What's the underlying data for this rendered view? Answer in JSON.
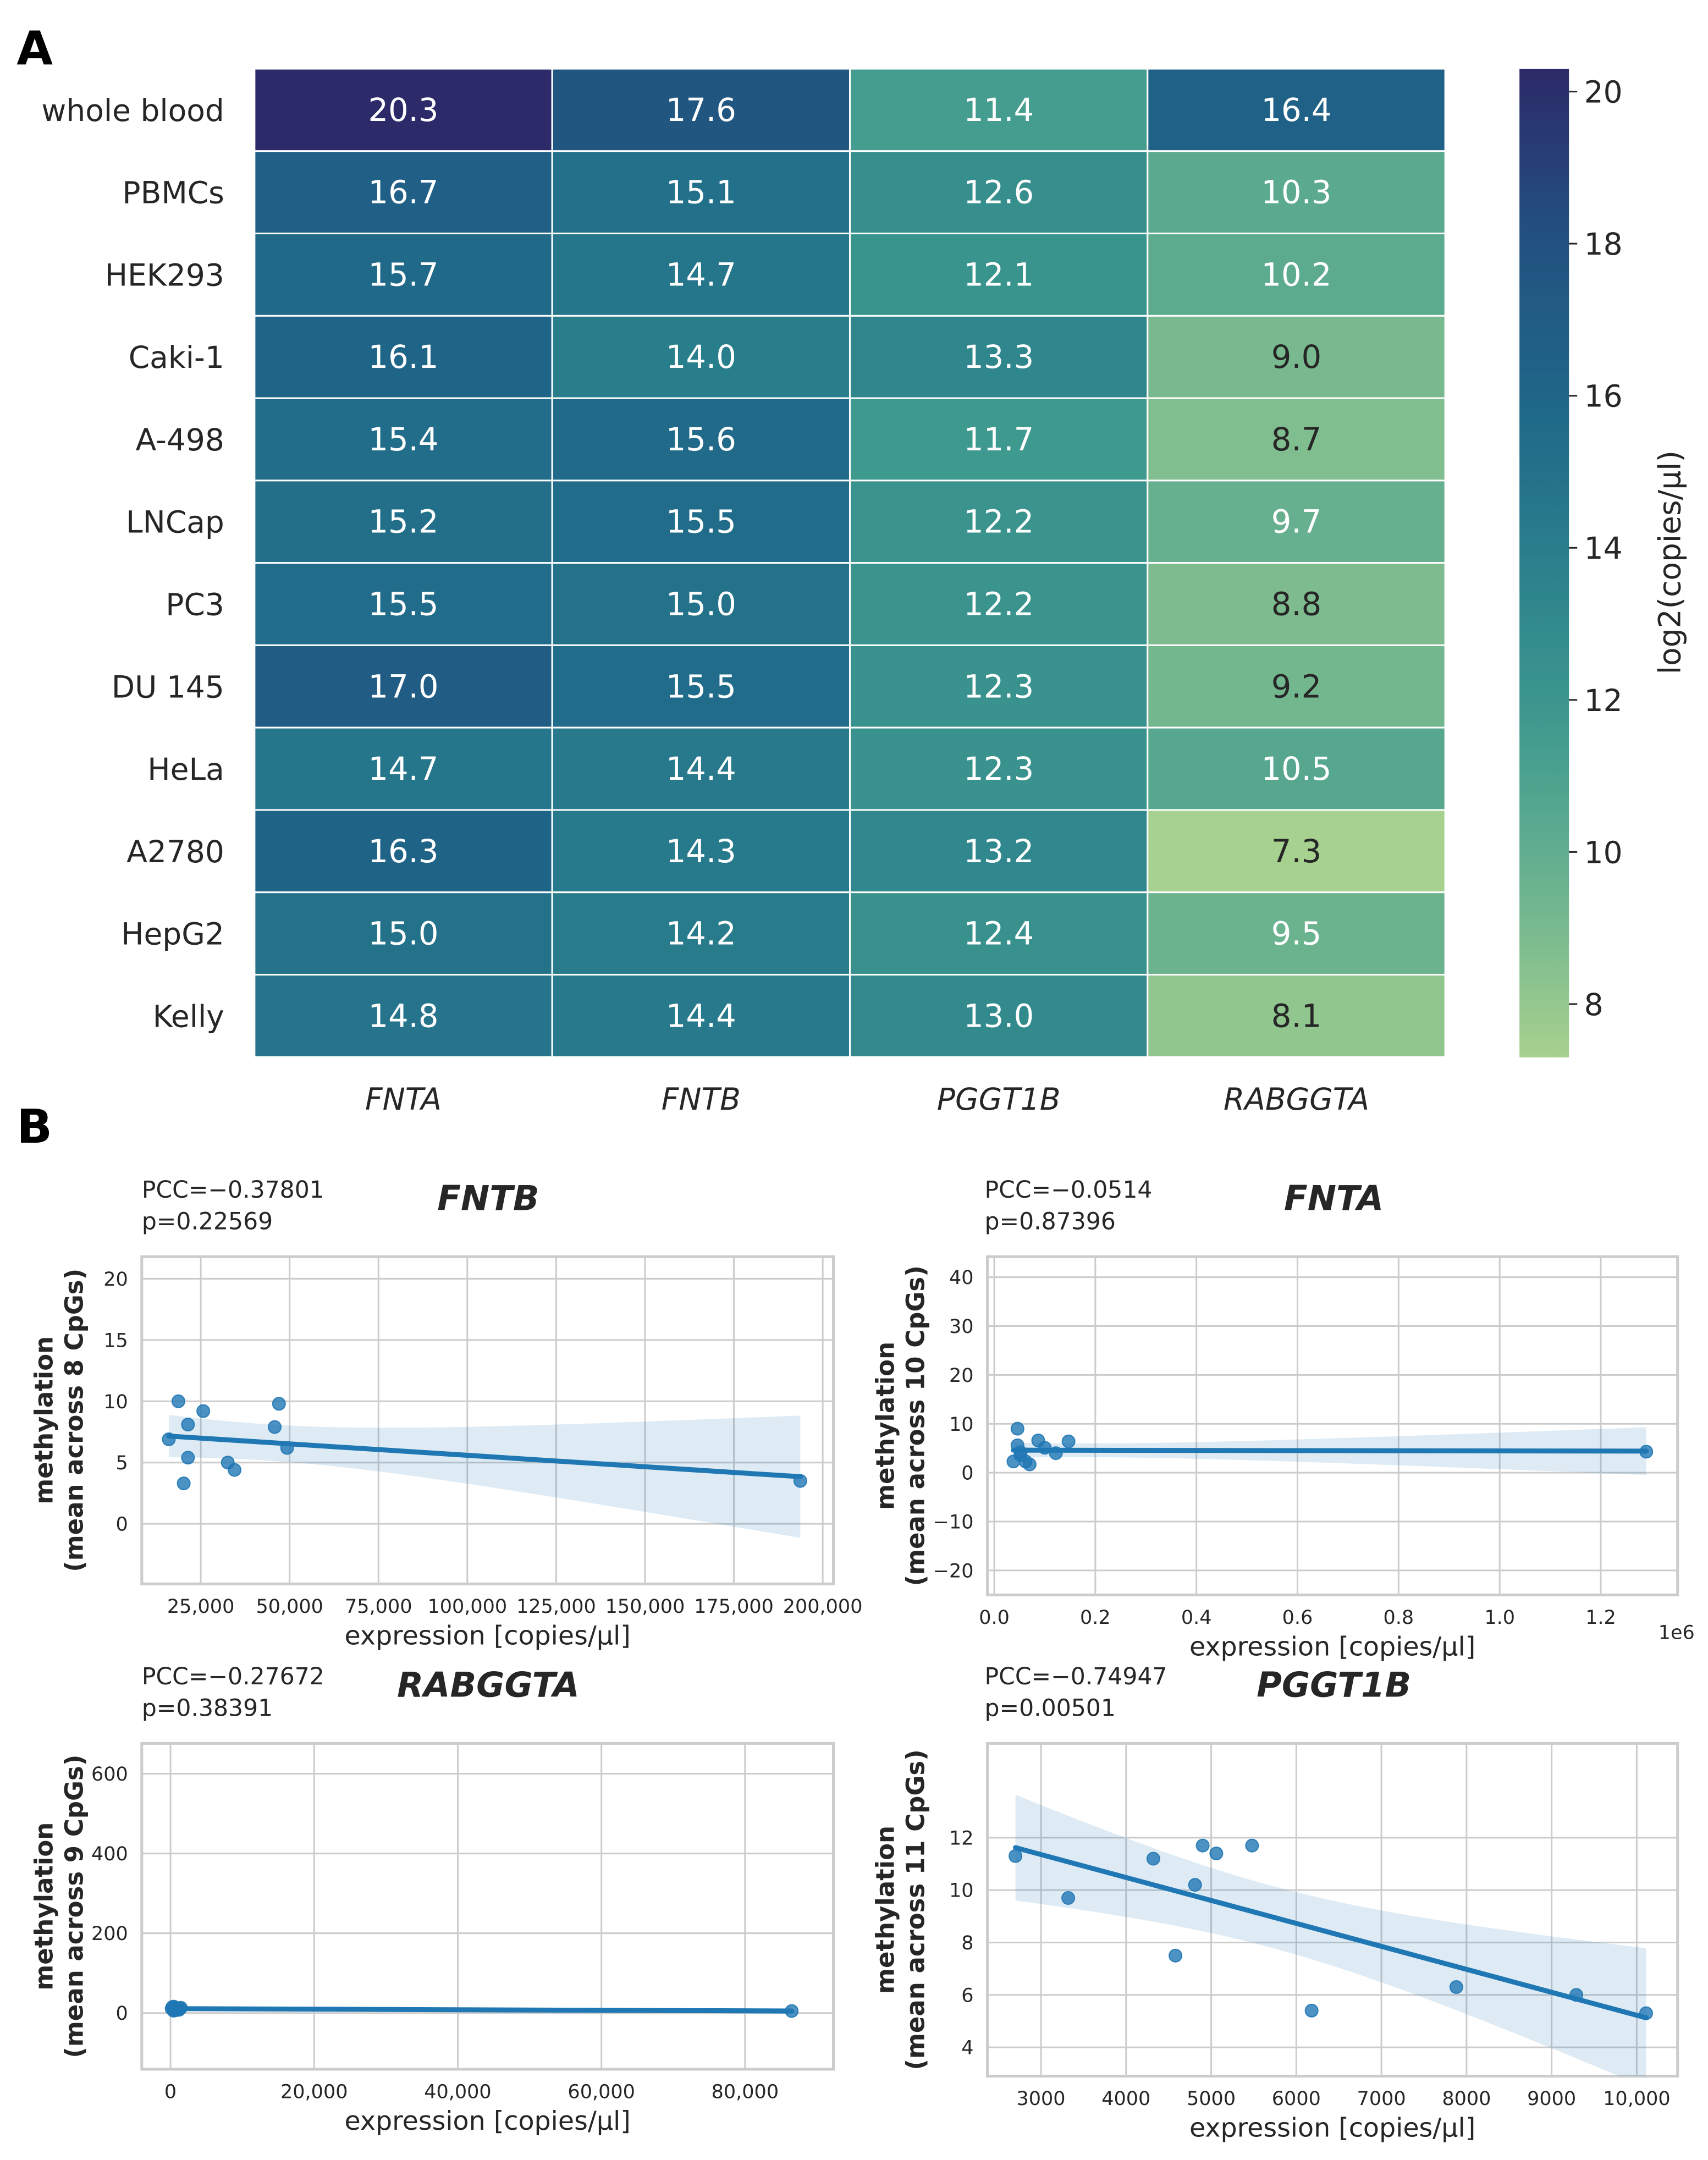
{
  "panel_labels": {
    "a": "A",
    "b": "B"
  },
  "chart_data": [
    {
      "type": "heatmap",
      "rows": [
        "whole blood",
        "PBMCs",
        "HEK293",
        "Caki-1",
        "A-498",
        "LNCap",
        "PC3",
        "DU 145",
        "HeLa",
        "A2780",
        "HepG2",
        "Kelly"
      ],
      "columns": [
        "FNTA",
        "FNTB",
        "PGGT1B",
        "RABGGTA"
      ],
      "values": [
        [
          20.3,
          17.6,
          11.4,
          16.4
        ],
        [
          16.7,
          15.1,
          12.6,
          10.3
        ],
        [
          15.7,
          14.7,
          12.1,
          10.2
        ],
        [
          16.1,
          14.0,
          13.3,
          9.0
        ],
        [
          15.4,
          15.6,
          11.7,
          8.7
        ],
        [
          15.2,
          15.5,
          12.2,
          9.7
        ],
        [
          15.5,
          15.0,
          12.2,
          8.8
        ],
        [
          17.0,
          15.5,
          12.3,
          9.2
        ],
        [
          14.7,
          14.4,
          12.3,
          10.5
        ],
        [
          16.3,
          14.3,
          13.2,
          7.3
        ],
        [
          15.0,
          14.2,
          12.4,
          9.5
        ],
        [
          14.8,
          14.4,
          13.0,
          8.1
        ]
      ],
      "value_labels": [
        [
          "20.3",
          "17.6",
          "11.4",
          "16.4"
        ],
        [
          "16.7",
          "15.1",
          "12.6",
          "10.3"
        ],
        [
          "15.7",
          "14.7",
          "12.1",
          "10.2"
        ],
        [
          "16.1",
          "14.0",
          "13.3",
          "9.0"
        ],
        [
          "15.4",
          "15.6",
          "11.7",
          "8.7"
        ],
        [
          "15.2",
          "15.5",
          "12.2",
          "9.7"
        ],
        [
          "15.5",
          "15.0",
          "12.2",
          "8.8"
        ],
        [
          "17.0",
          "15.5",
          "12.3",
          "9.2"
        ],
        [
          "14.7",
          "14.4",
          "12.3",
          "10.5"
        ],
        [
          "16.3",
          "14.3",
          "13.2",
          "7.3"
        ],
        [
          "15.0",
          "14.2",
          "12.4",
          "9.5"
        ],
        [
          "14.8",
          "14.4",
          "13.0",
          "8.1"
        ]
      ],
      "colormap": "crest",
      "colormap_stops": [
        "#a6d18e",
        "#6cb38f",
        "#3f9a8e",
        "#2a808c",
        "#1f6689",
        "#22517f",
        "#2c2a68"
      ],
      "colorbar": {
        "label": "log2(copies/µl)",
        "range": [
          7.3,
          20.3
        ],
        "ticks": [
          8,
          10,
          12,
          14,
          16,
          18,
          20
        ],
        "tick_labels": [
          "8",
          "10",
          "12",
          "14",
          "16",
          "18",
          "20"
        ]
      }
    },
    {
      "type": "scatter",
      "title": "FNTB",
      "annotation": [
        "PCC=−0.37801",
        "p=0.22569"
      ],
      "xlabel": "expression [copies/µl]",
      "ylabel": [
        "methylation",
        "(mean across 8 CpGs)"
      ],
      "xlim": [
        8400,
        203000
      ],
      "ylim": [
        -4.9,
        21.8
      ],
      "xticks": [
        25000,
        50000,
        75000,
        100000,
        125000,
        150000,
        175000,
        200000
      ],
      "xtick_labels": [
        "25,000",
        "50,000",
        "75,000",
        "100,000",
        "125,000",
        "150,000",
        "175,000",
        "200,000"
      ],
      "yticks": [
        0,
        5,
        10,
        15,
        20
      ],
      "ytick_labels": [
        "0",
        "5",
        "10",
        "15",
        "20"
      ],
      "grid": true,
      "regression": "linear fit with 95% CI band",
      "points": [
        [
          16000,
          6.9
        ],
        [
          18700,
          10.0
        ],
        [
          21400,
          8.1
        ],
        [
          25700,
          9.2
        ],
        [
          21400,
          5.4
        ],
        [
          20200,
          3.3
        ],
        [
          32600,
          5.0
        ],
        [
          34500,
          4.4
        ],
        [
          47000,
          9.8
        ],
        [
          45800,
          7.9
        ],
        [
          49300,
          6.2
        ],
        [
          193700,
          3.5
        ]
      ]
    },
    {
      "type": "scatter",
      "title": "FNTA",
      "annotation": [
        "PCC=−0.0514",
        "p=0.87396"
      ],
      "xlabel": "expression [copies/µl]",
      "ylabel": [
        "methylation",
        "(mean across 10 CpGs)"
      ],
      "x_offset_label": "1e6",
      "xlim": [
        -13600,
        1352000
      ],
      "ylim": [
        -25,
        44.2
      ],
      "xticks": [
        0,
        200000,
        400000,
        600000,
        800000,
        1000000,
        1200000
      ],
      "xtick_labels": [
        "0.0",
        "0.2",
        "0.4",
        "0.6",
        "0.8",
        "1.0",
        "1.2"
      ],
      "yticks": [
        -20,
        -10,
        0,
        10,
        20,
        30,
        40
      ],
      "ytick_labels": [
        "−20",
        "−10",
        "0",
        "10",
        "20",
        "30",
        "40"
      ],
      "grid": true,
      "regression": "linear fit with 95% CI band",
      "points": [
        [
          46000,
          9.0
        ],
        [
          46000,
          5.6
        ],
        [
          52000,
          4.2
        ],
        [
          38000,
          2.3
        ],
        [
          62000,
          2.3
        ],
        [
          70000,
          1.7
        ],
        [
          87000,
          6.6
        ],
        [
          100000,
          5.1
        ],
        [
          122000,
          4.0
        ],
        [
          147000,
          6.4
        ],
        [
          52000,
          3.6
        ],
        [
          1290000,
          4.3
        ]
      ]
    },
    {
      "type": "scatter",
      "title": "RABGGTA",
      "annotation": [
        "PCC=−0.27672",
        "p=0.38391"
      ],
      "xlabel": "expression [copies/µl]",
      "ylabel": [
        "methylation",
        "(mean across 9 CpGs)"
      ],
      "xlim": [
        -4000,
        92300
      ],
      "ylim": [
        -141,
        676
      ],
      "xticks": [
        0,
        20000,
        40000,
        60000,
        80000
      ],
      "xtick_labels": [
        "0",
        "20,000",
        "40,000",
        "60,000",
        "80,000"
      ],
      "yticks": [
        0,
        200,
        400,
        600
      ],
      "ytick_labels": [
        "0",
        "200",
        "400",
        "600"
      ],
      "grid": true,
      "regression": "linear fit with 95% CI band",
      "points": [
        [
          1260,
          12
        ],
        [
          1176,
          8
        ],
        [
          512,
          14
        ],
        [
          416,
          6
        ],
        [
          832,
          10
        ],
        [
          446,
          16
        ],
        [
          588,
          9
        ],
        [
          1448,
          13
        ],
        [
          158,
          11
        ],
        [
          724,
          7
        ],
        [
          274,
          15
        ],
        [
          86500,
          5
        ]
      ]
    },
    {
      "type": "scatter",
      "title": "PGGT1B",
      "annotation": [
        "PCC=−0.74947",
        "p=0.00501"
      ],
      "xlabel": "expression [copies/µl]",
      "ylabel": [
        "methylation",
        "(mean across 11 CpGs)"
      ],
      "xlim": [
        2370,
        10480
      ],
      "ylim": [
        2.9,
        15.6
      ],
      "xticks": [
        3000,
        4000,
        5000,
        6000,
        7000,
        8000,
        9000,
        10000
      ],
      "xtick_labels": [
        "3000",
        "4000",
        "5000",
        "6000",
        "7000",
        "8000",
        "9000",
        "10,000"
      ],
      "yticks": [
        4,
        6,
        8,
        10,
        12
      ],
      "ytick_labels": [
        "4",
        "6",
        "8",
        "10",
        "12"
      ],
      "grid": true,
      "regression": "linear fit with 95% CI band",
      "points": [
        [
          2700,
          11.3
        ],
        [
          3320,
          9.7
        ],
        [
          4320,
          11.2
        ],
        [
          4580,
          7.5
        ],
        [
          4810,
          10.2
        ],
        [
          4900,
          11.7
        ],
        [
          5060,
          11.4
        ],
        [
          5480,
          11.7
        ],
        [
          6180,
          5.4
        ],
        [
          7880,
          6.3
        ],
        [
          9290,
          6.0
        ],
        [
          10110,
          5.3
        ]
      ]
    }
  ],
  "colors": {
    "points": "#1f77b4",
    "grid": "#cccccc",
    "text": "#262626"
  }
}
